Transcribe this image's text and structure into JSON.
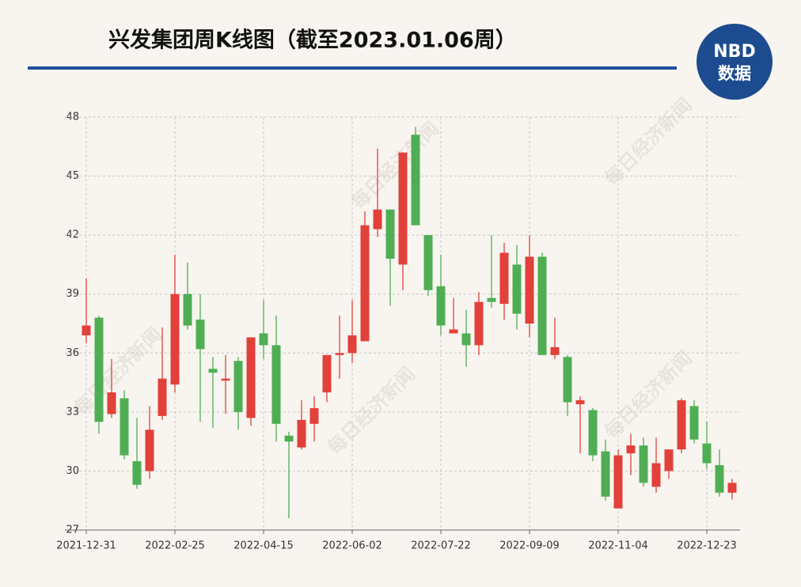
{
  "chart_data": {
    "type": "candlestick",
    "title": "兴发集团周K线图（截至2023.01.06周）",
    "brand": [
      "NBD",
      "数据"
    ],
    "watermark": "每日经济新闻",
    "categories": [
      "2021-12-31",
      null,
      null,
      null,
      null,
      null,
      null,
      "2022-02-25",
      null,
      null,
      null,
      null,
      null,
      null,
      "2022-04-15",
      null,
      null,
      null,
      null,
      null,
      null,
      "2022-06-02",
      null,
      null,
      null,
      null,
      null,
      null,
      "2022-07-22",
      null,
      null,
      null,
      null,
      null,
      null,
      "2022-09-09",
      null,
      null,
      null,
      null,
      null,
      null,
      "2022-11-04",
      null,
      null,
      null,
      null,
      null,
      null,
      "2022-12-23",
      null,
      null
    ],
    "open": [
      36.9,
      37.8,
      32.9,
      33.7,
      30.5,
      30.0,
      32.8,
      34.4,
      39.0,
      37.7,
      35.2,
      34.6,
      35.6,
      32.7,
      37.0,
      36.4,
      31.8,
      31.2,
      32.4,
      34.0,
      35.9,
      36.0,
      36.6,
      42.3,
      43.3,
      40.5,
      47.1,
      42.0,
      39.4,
      37.0,
      37.0,
      36.4,
      38.8,
      38.5,
      40.5,
      37.5,
      40.9,
      35.9,
      35.8,
      33.4,
      33.1,
      31.0,
      28.1,
      30.9,
      31.3,
      29.2,
      30.0,
      31.1,
      33.3,
      31.4,
      30.3,
      28.9
    ],
    "high": [
      39.8,
      37.9,
      35.7,
      34.1,
      32.7,
      33.3,
      37.3,
      41.0,
      40.6,
      39.0,
      35.8,
      35.9,
      35.8,
      36.8,
      38.7,
      37.9,
      32.0,
      33.6,
      33.8,
      35.9,
      37.9,
      38.7,
      43.2,
      46.4,
      43.3,
      46.2,
      47.5,
      42.0,
      41.0,
      38.8,
      38.2,
      39.1,
      42.0,
      41.6,
      41.5,
      42.0,
      41.1,
      37.8,
      35.9,
      33.8,
      33.2,
      31.6,
      31.1,
      31.9,
      31.7,
      31.7,
      31.1,
      33.7,
      33.6,
      32.5,
      31.1,
      29.6
    ],
    "low": [
      36.5,
      31.9,
      32.7,
      30.6,
      29.1,
      29.6,
      32.6,
      34.0,
      37.2,
      32.5,
      32.2,
      32.9,
      32.1,
      32.3,
      35.7,
      31.5,
      27.6,
      31.1,
      31.5,
      33.5,
      34.7,
      35.5,
      36.6,
      41.9,
      38.4,
      39.2,
      42.5,
      38.9,
      36.9,
      37.0,
      35.3,
      35.9,
      38.3,
      37.7,
      37.2,
      36.8,
      35.9,
      35.7,
      32.8,
      30.9,
      30.5,
      28.5,
      28.1,
      29.8,
      29.2,
      28.9,
      29.6,
      30.9,
      31.4,
      30.1,
      28.7,
      28.55
    ],
    "close": [
      37.4,
      32.5,
      34.0,
      30.8,
      29.3,
      32.1,
      34.7,
      39.0,
      37.4,
      36.2,
      35.0,
      34.7,
      33.0,
      36.8,
      36.4,
      32.4,
      31.5,
      32.6,
      33.2,
      35.9,
      36.0,
      36.9,
      42.5,
      43.3,
      40.8,
      46.2,
      42.5,
      39.2,
      37.4,
      37.2,
      36.4,
      38.6,
      38.6,
      41.1,
      38.0,
      40.9,
      35.9,
      36.3,
      33.5,
      33.6,
      30.8,
      28.7,
      30.8,
      31.3,
      29.4,
      30.4,
      31.1,
      33.6,
      31.6,
      30.4,
      28.9,
      29.4
    ],
    "up_color": "#e2403a",
    "down_color": "#4fae54",
    "ylim": [
      27,
      48
    ],
    "yticks": [
      27,
      30,
      33,
      36,
      39,
      42,
      45,
      48
    ],
    "grid": true
  }
}
